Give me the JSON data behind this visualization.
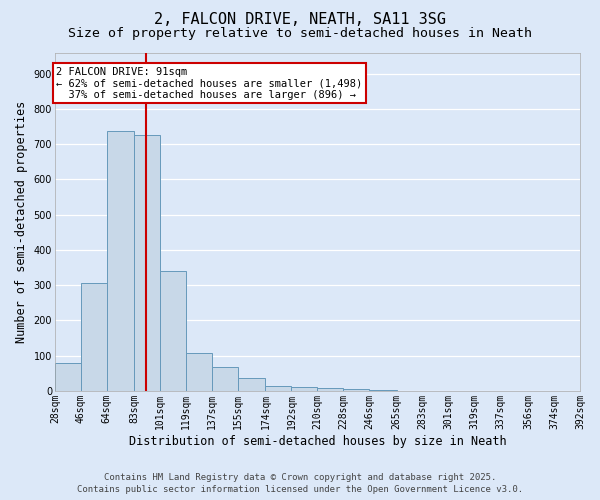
{
  "title": "2, FALCON DRIVE, NEATH, SA11 3SG",
  "subtitle": "Size of property relative to semi-detached houses in Neath",
  "xlabel": "Distribution of semi-detached houses by size in Neath",
  "ylabel": "Number of semi-detached properties",
  "bins": [
    28,
    46,
    64,
    83,
    101,
    119,
    137,
    155,
    174,
    192,
    210,
    228,
    246,
    265,
    283,
    301,
    319,
    337,
    356,
    374,
    392
  ],
  "bin_labels": [
    "28sqm",
    "46sqm",
    "64sqm",
    "83sqm",
    "101sqm",
    "119sqm",
    "137sqm",
    "155sqm",
    "174sqm",
    "192sqm",
    "210sqm",
    "228sqm",
    "246sqm",
    "265sqm",
    "283sqm",
    "301sqm",
    "319sqm",
    "337sqm",
    "356sqm",
    "374sqm",
    "392sqm"
  ],
  "values": [
    80,
    307,
    738,
    725,
    340,
    107,
    68,
    37,
    14,
    11,
    9,
    5,
    4,
    1,
    1,
    0,
    0,
    0,
    0,
    0
  ],
  "bar_color": "#c8d8e8",
  "bar_edge_color": "#6699bb",
  "property_line_x": 91,
  "property_line_color": "#cc0000",
  "annotation_line1": "2 FALCON DRIVE: 91sqm",
  "annotation_line2": "← 62% of semi-detached houses are smaller (1,498)",
  "annotation_line3": "  37% of semi-detached houses are larger (896) →",
  "annotation_box_color": "#ffffff",
  "annotation_box_edge": "#cc0000",
  "ylim": [
    0,
    960
  ],
  "yticks": [
    0,
    100,
    200,
    300,
    400,
    500,
    600,
    700,
    800,
    900
  ],
  "background_color": "#dce8f8",
  "grid_color": "#ffffff",
  "footer_line1": "Contains HM Land Registry data © Crown copyright and database right 2025.",
  "footer_line2": "Contains public sector information licensed under the Open Government Licence v3.0.",
  "title_fontsize": 11,
  "subtitle_fontsize": 9.5,
  "axis_label_fontsize": 8.5,
  "tick_fontsize": 7,
  "footer_fontsize": 6.5,
  "annotation_fontsize": 7.5
}
